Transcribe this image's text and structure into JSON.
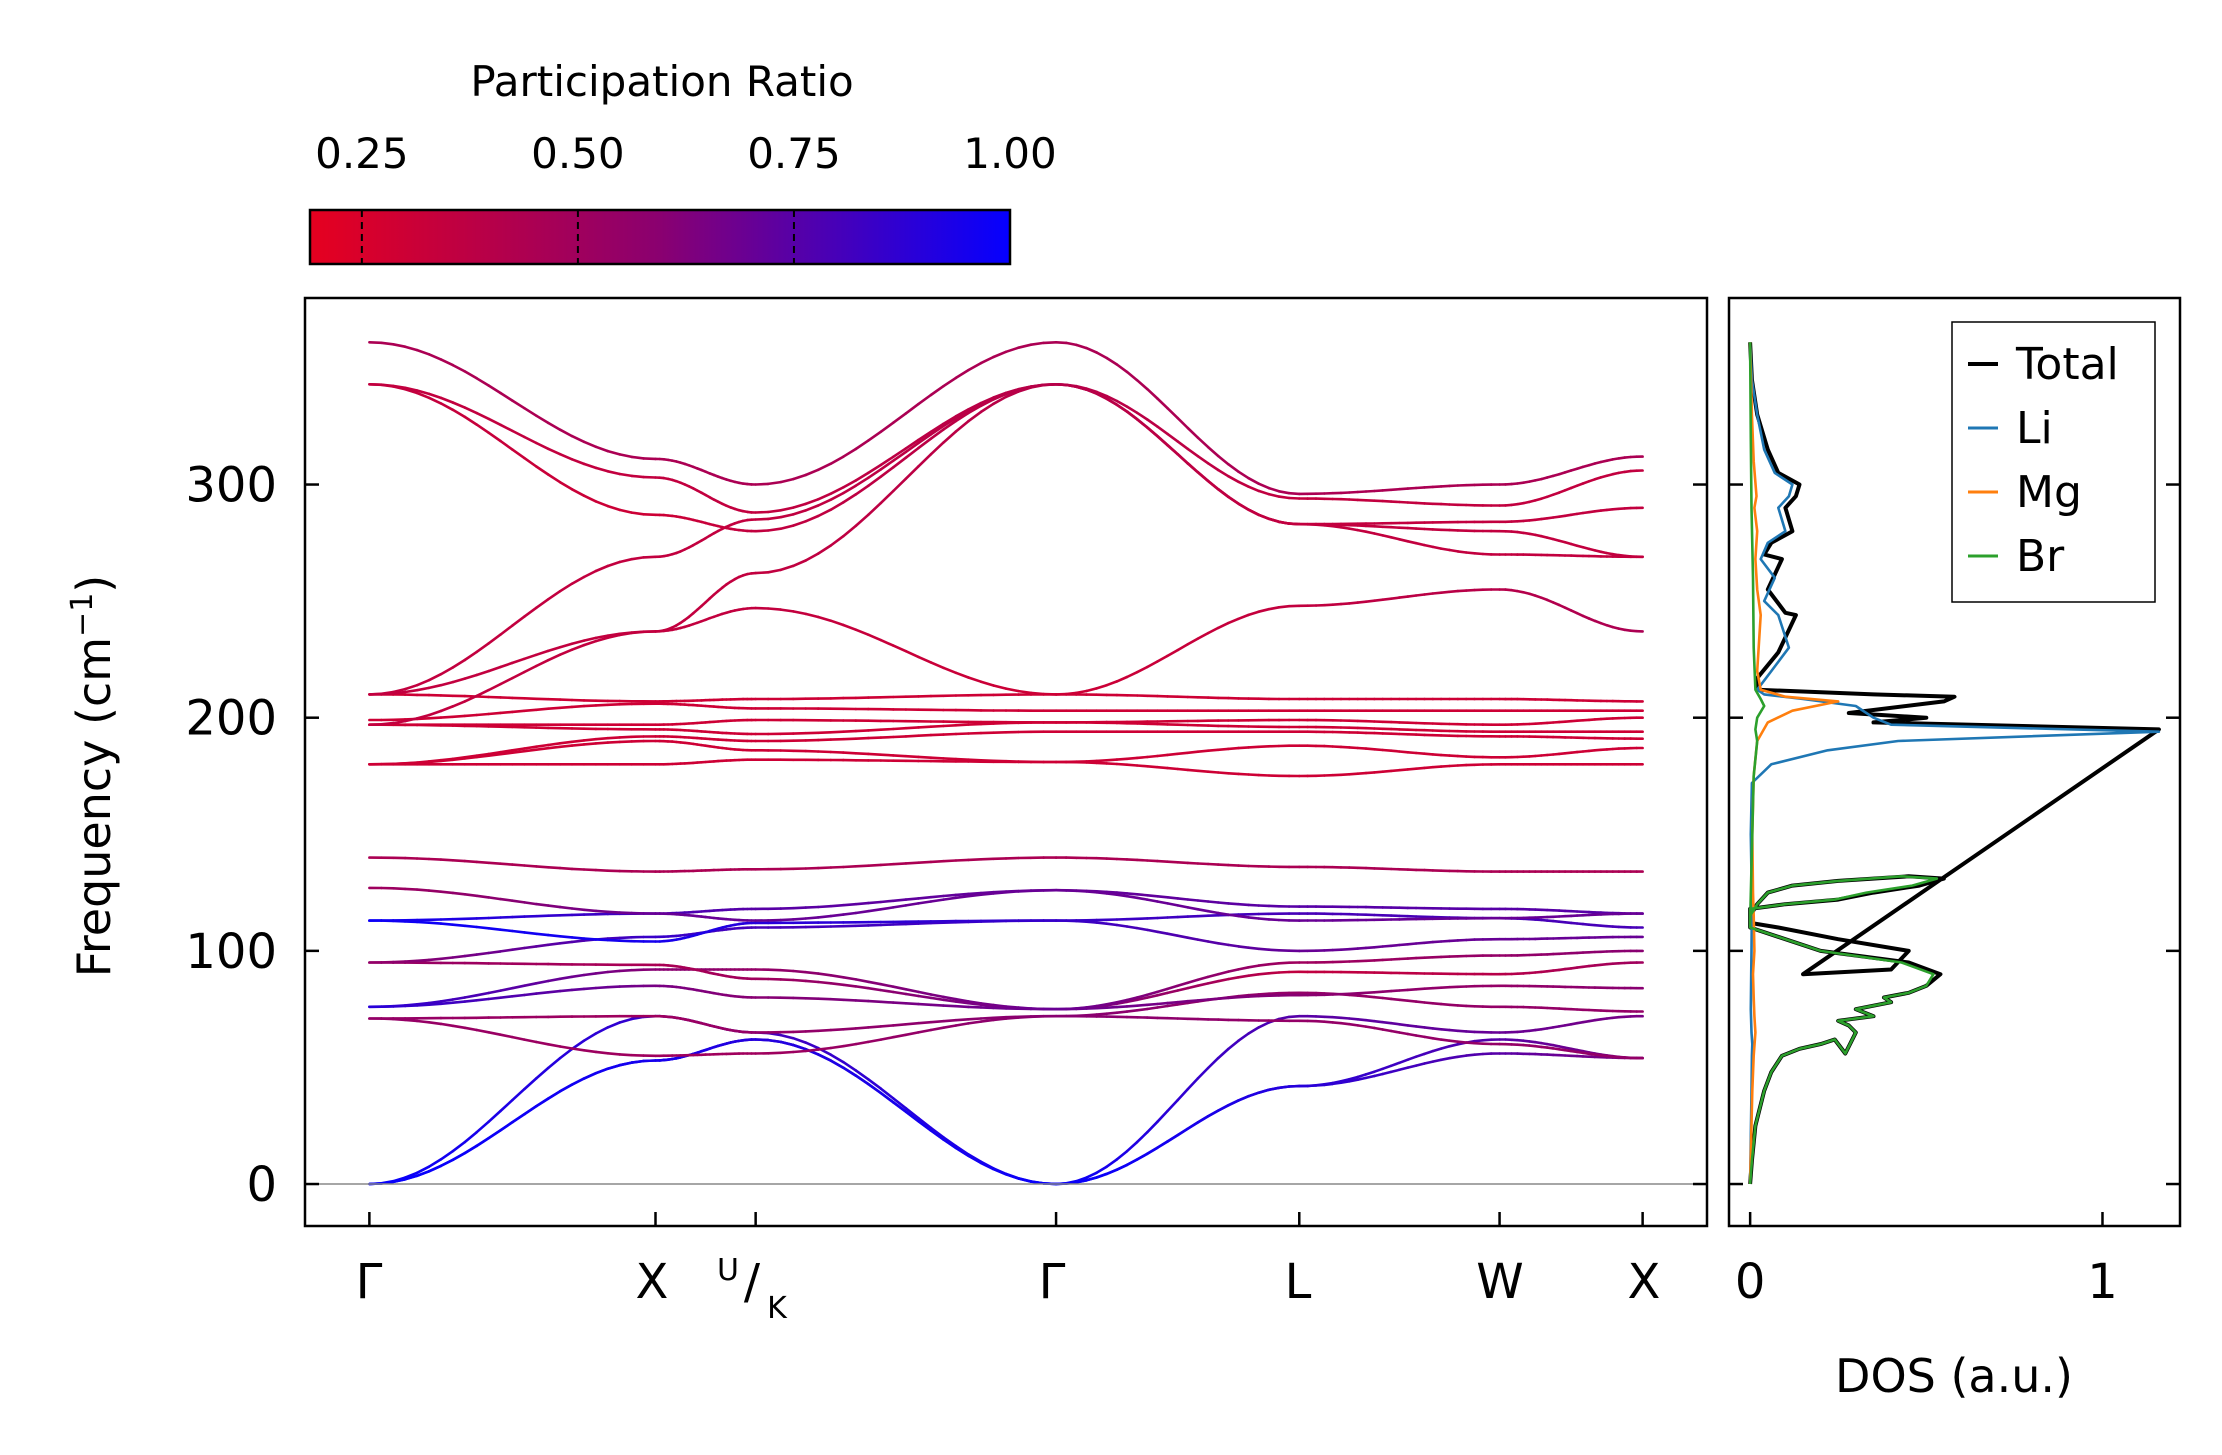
{
  "colors": {
    "pr_low": "#e6001f",
    "pr_mid": "#8a0070",
    "pr_high": "#0500ff",
    "total": "#000000",
    "li": "#1f77b4",
    "mg": "#ff7f0e",
    "br": "#2ca02c",
    "zero_line": "#888888"
  },
  "chart_data": [
    {
      "type": "colorbar",
      "title": "Participation Ratio",
      "range": [
        0.19,
        1.0
      ],
      "ticks": [
        0.25,
        0.5,
        0.75,
        1.0
      ],
      "tick_labels": [
        "0.25",
        "0.50",
        "0.75",
        "1.00"
      ]
    },
    {
      "type": "line",
      "title": "",
      "xlabel": "",
      "ylabel": "Frequency (cm",
      "ylabel_sup": "−1",
      "ylabel_close": ")",
      "ylim": [
        -18,
        380
      ],
      "yticks": [
        0,
        100,
        200,
        300
      ],
      "ytick_labels": [
        "0",
        "100",
        "200",
        "300"
      ],
      "path_positions": [
        0,
        2.0,
        2.7,
        4.8,
        6.5,
        7.9,
        8.9
      ],
      "path_labels": [
        "Γ",
        "X",
        "U",
        "/",
        "K",
        "Γ",
        "L",
        "W",
        "X"
      ],
      "xlim": [
        -0.45,
        9.35
      ],
      "bands": [
        {
          "name": "mode-1",
          "freq": [
            0,
            53,
            62,
            0,
            42,
            56,
            54
          ],
          "pr": [
            1.0,
            0.95,
            0.9,
            1.0,
            0.9,
            0.75,
            0.62
          ]
        },
        {
          "name": "mode-2",
          "freq": [
            0,
            53,
            62,
            0,
            42,
            62,
            54
          ],
          "pr": [
            1.0,
            0.95,
            0.9,
            1.0,
            0.9,
            0.75,
            0.62
          ]
        },
        {
          "name": "mode-3",
          "freq": [
            0,
            72,
            65,
            0,
            72,
            65,
            72
          ],
          "pr": [
            1.0,
            0.85,
            0.8,
            1.0,
            0.75,
            0.7,
            0.65
          ]
        },
        {
          "name": "mode-4",
          "freq": [
            71,
            72,
            65,
            72,
            82,
            76,
            74
          ],
          "pr": [
            0.55,
            0.5,
            0.55,
            0.6,
            0.55,
            0.55,
            0.55
          ]
        },
        {
          "name": "mode-5",
          "freq": [
            71,
            55,
            56,
            72,
            70,
            60,
            54
          ],
          "pr": [
            0.55,
            0.5,
            0.5,
            0.6,
            0.55,
            0.55,
            0.55
          ]
        },
        {
          "name": "mode-6",
          "freq": [
            76,
            85,
            80,
            75,
            81,
            85,
            84
          ],
          "pr": [
            0.9,
            0.65,
            0.6,
            0.7,
            0.6,
            0.55,
            0.6
          ]
        },
        {
          "name": "mode-7",
          "freq": [
            76,
            92,
            92,
            75,
            91,
            90,
            95
          ],
          "pr": [
            0.9,
            0.6,
            0.55,
            0.7,
            0.35,
            0.4,
            0.5
          ]
        },
        {
          "name": "mode-8",
          "freq": [
            95,
            94,
            88,
            75,
            95,
            98,
            100
          ],
          "pr": [
            0.55,
            0.45,
            0.5,
            0.7,
            0.5,
            0.55,
            0.6
          ]
        },
        {
          "name": "mode-9",
          "freq": [
            95,
            106,
            110,
            113,
            100,
            105,
            106
          ],
          "pr": [
            0.55,
            0.85,
            0.8,
            0.85,
            0.7,
            0.7,
            0.7
          ]
        },
        {
          "name": "mode-10",
          "freq": [
            113,
            104,
            112,
            113,
            116,
            114,
            110
          ],
          "pr": [
            0.98,
            0.95,
            0.9,
            0.85,
            0.8,
            0.8,
            0.8
          ]
        },
        {
          "name": "mode-11",
          "freq": [
            113,
            116,
            118,
            126,
            119,
            118,
            116
          ],
          "pr": [
            0.98,
            0.8,
            0.75,
            0.7,
            0.75,
            0.75,
            0.75
          ]
        },
        {
          "name": "mode-12",
          "freq": [
            127,
            116,
            113,
            126,
            113,
            114,
            116
          ],
          "pr": [
            0.5,
            0.7,
            0.7,
            0.7,
            0.7,
            0.7,
            0.7
          ]
        },
        {
          "name": "mode-13",
          "freq": [
            140,
            134,
            135,
            140,
            136,
            134,
            134
          ],
          "pr": [
            0.45,
            0.45,
            0.45,
            0.45,
            0.45,
            0.45,
            0.45
          ]
        },
        {
          "name": "mode-14",
          "freq": [
            180,
            180,
            182,
            181,
            175,
            180,
            180
          ],
          "pr": [
            0.3,
            0.3,
            0.3,
            0.3,
            0.3,
            0.3,
            0.3
          ]
        },
        {
          "name": "mode-15",
          "freq": [
            180,
            190,
            186,
            181,
            188,
            183,
            187
          ],
          "pr": [
            0.3,
            0.3,
            0.3,
            0.3,
            0.3,
            0.3,
            0.3
          ]
        },
        {
          "name": "mode-16",
          "freq": [
            180,
            192,
            190,
            194,
            194,
            192,
            191
          ],
          "pr": [
            0.3,
            0.3,
            0.3,
            0.3,
            0.3,
            0.3,
            0.3
          ]
        },
        {
          "name": "mode-17",
          "freq": [
            197,
            195,
            193,
            198,
            196,
            194,
            194
          ],
          "pr": [
            0.3,
            0.3,
            0.3,
            0.3,
            0.3,
            0.3,
            0.3
          ]
        },
        {
          "name": "mode-18",
          "freq": [
            197,
            197,
            199,
            198,
            199,
            197,
            200
          ],
          "pr": [
            0.3,
            0.3,
            0.3,
            0.3,
            0.3,
            0.3,
            0.3
          ]
        },
        {
          "name": "mode-19",
          "freq": [
            199,
            206,
            204,
            203,
            203,
            203,
            203
          ],
          "pr": [
            0.3,
            0.3,
            0.3,
            0.3,
            0.3,
            0.3,
            0.3
          ]
        },
        {
          "name": "mode-20",
          "freq": [
            210,
            207,
            208,
            210,
            208,
            208,
            207
          ],
          "pr": [
            0.3,
            0.3,
            0.3,
            0.3,
            0.3,
            0.3,
            0.3
          ]
        },
        {
          "name": "mode-21",
          "freq": [
            197,
            237,
            247,
            210,
            248,
            255,
            237
          ],
          "pr": [
            0.35,
            0.35,
            0.35,
            0.3,
            0.35,
            0.4,
            0.45
          ]
        },
        {
          "name": "mode-22",
          "freq": [
            210,
            237,
            262,
            343,
            283,
            270,
            269
          ],
          "pr": [
            0.35,
            0.35,
            0.35,
            0.4,
            0.35,
            0.35,
            0.35
          ]
        },
        {
          "name": "mode-23",
          "freq": [
            210,
            269,
            285,
            343,
            283,
            284,
            290
          ],
          "pr": [
            0.35,
            0.35,
            0.35,
            0.4,
            0.35,
            0.35,
            0.35
          ]
        },
        {
          "name": "mode-24",
          "freq": [
            343,
            287,
            280,
            343,
            283,
            280,
            269
          ],
          "pr": [
            0.35,
            0.3,
            0.35,
            0.4,
            0.35,
            0.35,
            0.35
          ]
        },
        {
          "name": "mode-25",
          "freq": [
            343,
            303,
            288,
            343,
            294,
            291,
            306
          ],
          "pr": [
            0.35,
            0.35,
            0.35,
            0.4,
            0.35,
            0.35,
            0.35
          ]
        },
        {
          "name": "mode-26",
          "freq": [
            361,
            311,
            300,
            361,
            296,
            300,
            312
          ],
          "pr": [
            0.45,
            0.45,
            0.45,
            0.45,
            0.45,
            0.45,
            0.45
          ]
        }
      ]
    },
    {
      "type": "line",
      "title": "",
      "xlabel": "DOS (a.u.)",
      "ylabel": "",
      "xlim": [
        -0.06,
        1.22
      ],
      "ylim": [
        -18,
        380
      ],
      "xticks": [
        0,
        1
      ],
      "xtick_labels": [
        "0",
        "1"
      ],
      "legend": "top-right",
      "series": [
        {
          "name": "Total",
          "x": [
            0.0,
            0.005,
            0.015,
            0.04,
            0.06,
            0.09,
            0.14,
            0.2,
            0.24,
            0.27,
            0.3,
            0.28,
            0.25,
            0.35,
            0.3,
            0.4,
            0.38,
            0.45,
            0.5,
            0.54,
            0.45,
            0.2,
            0.0,
            0.0,
            0.02,
            0.05,
            0.12,
            0.25,
            0.45,
            0.55,
            0.48,
            0.35,
            0.25,
            0.1,
            0.0,
            0.0,
            0.08,
            0.25,
            0.45,
            0.4,
            0.15,
            1.16,
            0.35,
            0.5,
            0.28,
            0.55,
            0.58,
            0.35,
            0.02,
            0.02,
            0.08,
            0.13,
            0.1,
            0.05,
            0.09,
            0.04,
            0.06,
            0.12,
            0.1,
            0.13,
            0.14,
            0.08,
            0.05,
            0.02,
            0.005,
            0.0
          ],
          "y": [
            0,
            10,
            25,
            40,
            48,
            55,
            58,
            60,
            62,
            56,
            65,
            68,
            70,
            72,
            75,
            78,
            80,
            82,
            85,
            90,
            95,
            100,
            110,
            115,
            120,
            125,
            128,
            130,
            132,
            131,
            128,
            125,
            122,
            120,
            118,
            112,
            110,
            105,
            100,
            92,
            90,
            195,
            198,
            200,
            202,
            207,
            209,
            210,
            212,
            217,
            228,
            244,
            245,
            255,
            268,
            270,
            275,
            280,
            290,
            295,
            300,
            305,
            315,
            330,
            345,
            361
          ]
        },
        {
          "name": "Li",
          "x": [
            0.0,
            0.002,
            0.004,
            0.005,
            0.006,
            0.004,
            0.002,
            0.003,
            0.004,
            0.005,
            0.004,
            0.002,
            0.005,
            0.06,
            0.22,
            0.42,
            1.16,
            0.4,
            0.35,
            0.3,
            0.15,
            0.04,
            0.02,
            0.06,
            0.11,
            0.08,
            0.04,
            0.07,
            0.03,
            0.05,
            0.1,
            0.08,
            0.11,
            0.12,
            0.07,
            0.04,
            0.02,
            0.005,
            0.0
          ],
          "y": [
            0,
            20,
            40,
            55,
            60,
            65,
            75,
            90,
            100,
            120,
            132,
            150,
            172,
            180,
            186,
            190,
            194,
            197,
            200,
            205,
            208,
            210,
            212,
            220,
            230,
            244,
            250,
            260,
            268,
            275,
            280,
            290,
            295,
            300,
            305,
            315,
            330,
            345,
            361
          ]
        },
        {
          "name": "Mg",
          "x": [
            0.0,
            0.003,
            0.006,
            0.01,
            0.015,
            0.012,
            0.01,
            0.008,
            0.012,
            0.01,
            0.008,
            0.006,
            0.01,
            0.02,
            0.05,
            0.12,
            0.25,
            0.1,
            0.03,
            0.02,
            0.03,
            0.02,
            0.015,
            0.02,
            0.012,
            0.018,
            0.01,
            0.005,
            0.0
          ],
          "y": [
            0,
            20,
            40,
            55,
            65,
            72,
            80,
            90,
            100,
            115,
            125,
            150,
            175,
            190,
            198,
            203,
            207,
            209,
            212,
            220,
            244,
            255,
            268,
            280,
            290,
            295,
            310,
            330,
            361
          ]
        },
        {
          "name": "Br",
          "x": [
            0.0,
            0.005,
            0.015,
            0.04,
            0.06,
            0.09,
            0.14,
            0.2,
            0.24,
            0.27,
            0.3,
            0.28,
            0.25,
            0.35,
            0.3,
            0.4,
            0.38,
            0.45,
            0.5,
            0.52,
            0.43,
            0.2,
            0.0,
            0.0,
            0.02,
            0.05,
            0.12,
            0.25,
            0.43,
            0.53,
            0.46,
            0.33,
            0.24,
            0.1,
            0.0,
            0.0,
            0.01,
            0.02,
            0.015,
            0.02,
            0.04,
            0.03,
            0.015,
            0.01,
            0.008,
            0.004,
            0.002,
            0.0
          ],
          "y": [
            0,
            10,
            25,
            40,
            48,
            55,
            58,
            60,
            62,
            56,
            65,
            68,
            70,
            72,
            75,
            78,
            80,
            82,
            85,
            90,
            95,
            100,
            110,
            115,
            120,
            125,
            128,
            130,
            132,
            131,
            128,
            125,
            122,
            120,
            118,
            112,
            175,
            190,
            195,
            200,
            205,
            208,
            212,
            230,
            260,
            290,
            320,
            361
          ]
        }
      ]
    }
  ]
}
